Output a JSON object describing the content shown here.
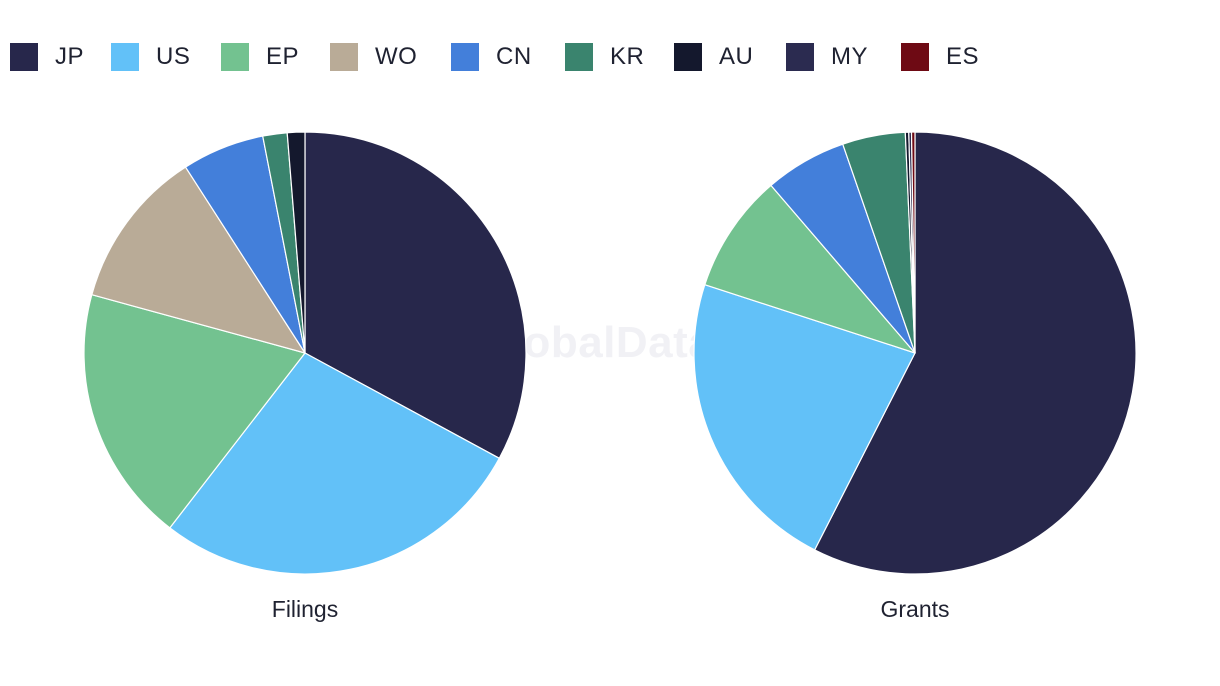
{
  "watermark": "GlobalData",
  "legend": [
    {
      "label": "JP",
      "color": "#27274b"
    },
    {
      "label": "US",
      "color": "#62c1f8"
    },
    {
      "label": "EP",
      "color": "#73c290"
    },
    {
      "label": "WO",
      "color": "#b9ab97"
    },
    {
      "label": "CN",
      "color": "#437fda"
    },
    {
      "label": "KR",
      "color": "#3a846e"
    },
    {
      "label": "AU",
      "color": "#14182d"
    },
    {
      "label": "MY",
      "color": "#2b2b50"
    },
    {
      "label": "ES",
      "color": "#6e0a14"
    }
  ],
  "chart_data": [
    {
      "type": "pie",
      "title": "Filings",
      "categories": [
        "JP",
        "US",
        "EP",
        "WO",
        "CN",
        "KR",
        "AU"
      ],
      "values": [
        33.3,
        27.9,
        19.0,
        11.8,
        6.1,
        1.8,
        1.3
      ]
    },
    {
      "type": "pie",
      "title": "Grants",
      "categories": [
        "JP",
        "US",
        "EP",
        "CN",
        "KR",
        "AU",
        "MY",
        "ES"
      ],
      "values": [
        57.5,
        22.5,
        8.7,
        6.0,
        4.6,
        0.25,
        0.2,
        0.25
      ]
    }
  ]
}
